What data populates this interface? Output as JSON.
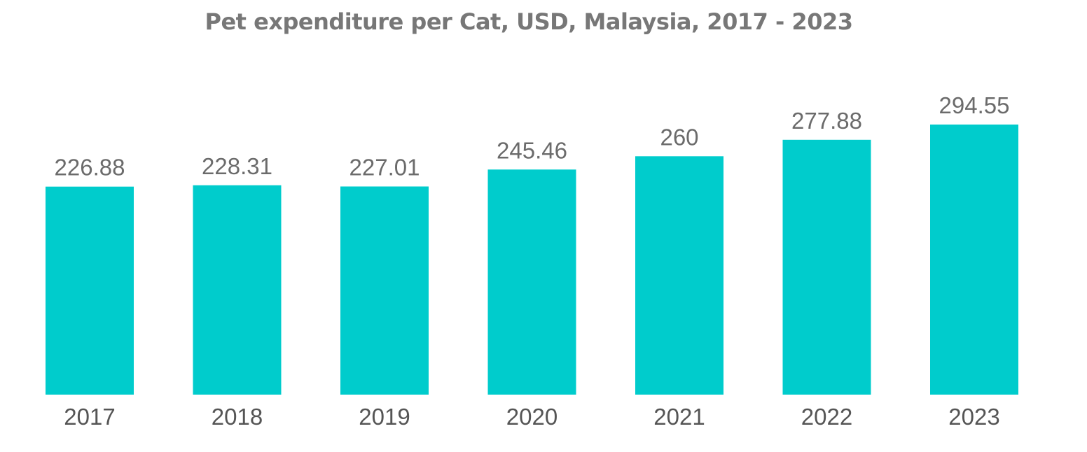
{
  "chart_data": {
    "type": "bar",
    "title": "Pet expenditure per Cat, USD, Malaysia, 2017 - 2023",
    "categories": [
      "2017",
      "2018",
      "2019",
      "2020",
      "2021",
      "2022",
      "2023"
    ],
    "values": [
      226.88,
      228.31,
      227.01,
      245.46,
      260,
      277.88,
      294.55
    ],
    "value_labels": [
      "226.88",
      "228.31",
      "227.01",
      "245.46",
      "260",
      "277.88",
      "294.55"
    ],
    "xlabel": "",
    "ylabel": "",
    "ylim": [
      0,
      294.55
    ],
    "grid": false,
    "legend": "none",
    "bar_color": "#00CCCC"
  }
}
